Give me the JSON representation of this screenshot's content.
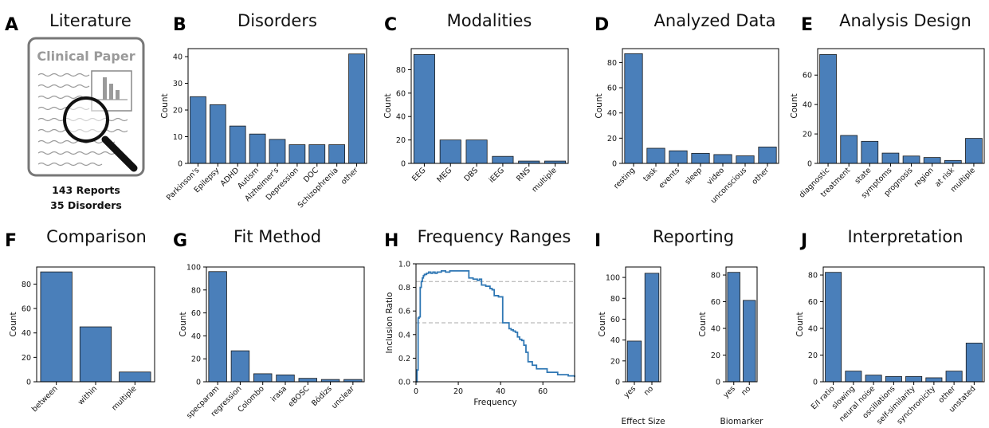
{
  "literature": {
    "letter": "A",
    "title": "Literature",
    "paper_label": "Clinical Paper",
    "line1": "143 Reports",
    "line2": "35 Disorders"
  },
  "colors": {
    "bar": "#4a7fba",
    "line": "#2f77b4",
    "ref": "#aaaaaa"
  },
  "chart_data": [
    {
      "letter": "B",
      "type": "bar",
      "title": "Disorders",
      "ylabel": "Count",
      "xlabel": "",
      "categories": [
        "Parkinson's",
        "Epilepsy",
        "ADHD",
        "Autism",
        "Alzheimer's",
        "Depression",
        "DOC",
        "Schizophrenia",
        "other"
      ],
      "values": [
        25,
        22,
        14,
        11,
        9,
        7,
        7,
        7,
        41
      ],
      "ylim": [
        0,
        43
      ],
      "yticks": [
        0,
        10,
        20,
        30,
        40
      ]
    },
    {
      "letter": "C",
      "type": "bar",
      "title": "Modalities",
      "ylabel": "Count",
      "xlabel": "",
      "categories": [
        "EEG",
        "MEG",
        "DBS",
        "iEEG",
        "RNS",
        "multiple"
      ],
      "values": [
        93,
        20,
        20,
        6,
        2,
        2
      ],
      "ylim": [
        0,
        98
      ],
      "yticks": [
        0,
        20,
        40,
        60,
        80
      ]
    },
    {
      "letter": "D",
      "type": "bar",
      "title": "Analyzed Data",
      "ylabel": "Count",
      "xlabel": "",
      "categories": [
        "resting",
        "task",
        "events",
        "sleep",
        "video",
        "unconscious",
        "other"
      ],
      "values": [
        87,
        12,
        10,
        8,
        7,
        6,
        13
      ],
      "ylim": [
        0,
        91
      ],
      "yticks": [
        0,
        20,
        40,
        60,
        80
      ]
    },
    {
      "letter": "E",
      "type": "bar",
      "title": "Analysis Design",
      "ylabel": "Count",
      "xlabel": "",
      "categories": [
        "diagnostic",
        "treatment",
        "state",
        "symptoms",
        "prognosis",
        "region",
        "at risk",
        "multiple"
      ],
      "values": [
        74,
        19,
        15,
        7,
        5,
        4,
        2,
        17
      ],
      "ylim": [
        0,
        78
      ],
      "yticks": [
        0,
        20,
        40,
        60
      ]
    },
    {
      "letter": "F",
      "type": "bar",
      "title": "Comparison",
      "ylabel": "Count",
      "xlabel": "",
      "categories": [
        "between",
        "within",
        "multiple"
      ],
      "values": [
        90,
        45,
        8
      ],
      "ylim": [
        0,
        94
      ],
      "yticks": [
        0,
        20,
        40,
        60,
        80
      ]
    },
    {
      "letter": "G",
      "type": "bar",
      "title": "Fit Method",
      "ylabel": "Count",
      "xlabel": "",
      "categories": [
        "specparam",
        "regression",
        "Colombo",
        "irasa",
        "eBOSC",
        "Bódizs",
        "unclear"
      ],
      "values": [
        96,
        27,
        7,
        6,
        3,
        2,
        2
      ],
      "ylim": [
        0,
        100
      ],
      "yticks": [
        0,
        20,
        40,
        60,
        80,
        100
      ]
    },
    {
      "letter": "H",
      "type": "line",
      "title": "Frequency Ranges",
      "ylabel": "Inclusion Ratio",
      "xlabel": "Frequency",
      "xlim": [
        0,
        75
      ],
      "ylim": [
        0,
        1
      ],
      "xticks": [
        0,
        20,
        40,
        60
      ],
      "yticks": [
        0,
        0.2,
        0.4,
        0.6,
        0.8,
        1.0
      ],
      "reference_lines": [
        0.5,
        0.85
      ],
      "x": [
        0,
        0.5,
        1,
        1.5,
        2,
        2.5,
        3,
        3.5,
        4,
        5,
        6,
        7,
        8,
        9,
        10,
        12,
        14,
        16,
        18,
        20,
        25,
        27,
        29,
        30,
        31,
        33,
        35,
        36,
        37,
        39,
        40,
        41,
        43,
        44,
        45,
        46,
        47,
        48,
        49,
        50,
        51,
        52,
        53,
        54,
        55,
        57,
        60,
        62,
        65,
        67,
        70,
        72,
        73,
        75
      ],
      "y": [
        0,
        0.1,
        0.54,
        0.55,
        0.8,
        0.85,
        0.88,
        0.9,
        0.91,
        0.92,
        0.93,
        0.92,
        0.93,
        0.92,
        0.93,
        0.94,
        0.93,
        0.94,
        0.94,
        0.94,
        0.88,
        0.87,
        0.86,
        0.87,
        0.82,
        0.81,
        0.79,
        0.78,
        0.73,
        0.72,
        0.72,
        0.5,
        0.5,
        0.45,
        0.44,
        0.43,
        0.42,
        0.38,
        0.36,
        0.35,
        0.31,
        0.25,
        0.17,
        0.17,
        0.14,
        0.11,
        0.11,
        0.08,
        0.08,
        0.06,
        0.06,
        0.05,
        0.05,
        0.04
      ]
    },
    {
      "letter": "I",
      "type": "bar",
      "title": "Reporting",
      "ylabel": "Count",
      "xlabel": "Effect Size",
      "categories": [
        "yes",
        "no"
      ],
      "values": [
        39,
        104
      ],
      "ylim": [
        0,
        110
      ],
      "yticks": [
        0,
        20,
        40,
        60,
        80,
        100
      ]
    },
    {
      "type": "bar",
      "title": "",
      "ylabel": "Count",
      "xlabel": "Biomarker",
      "categories": [
        "yes",
        "no"
      ],
      "values": [
        82,
        61
      ],
      "ylim": [
        0,
        86
      ],
      "yticks": [
        0,
        20,
        40,
        60,
        80
      ]
    },
    {
      "letter": "J",
      "type": "bar",
      "title": "Interpretation",
      "ylabel": "Count",
      "xlabel": "",
      "categories": [
        "E/I ratio",
        "slowing",
        "neural noise",
        "oscillations",
        "self-similarity",
        "synchronicity",
        "other",
        "unstated"
      ],
      "values": [
        82,
        8,
        5,
        4,
        4,
        3,
        8,
        29
      ],
      "ylim": [
        0,
        86
      ],
      "yticks": [
        0,
        20,
        40,
        60,
        80
      ]
    }
  ]
}
